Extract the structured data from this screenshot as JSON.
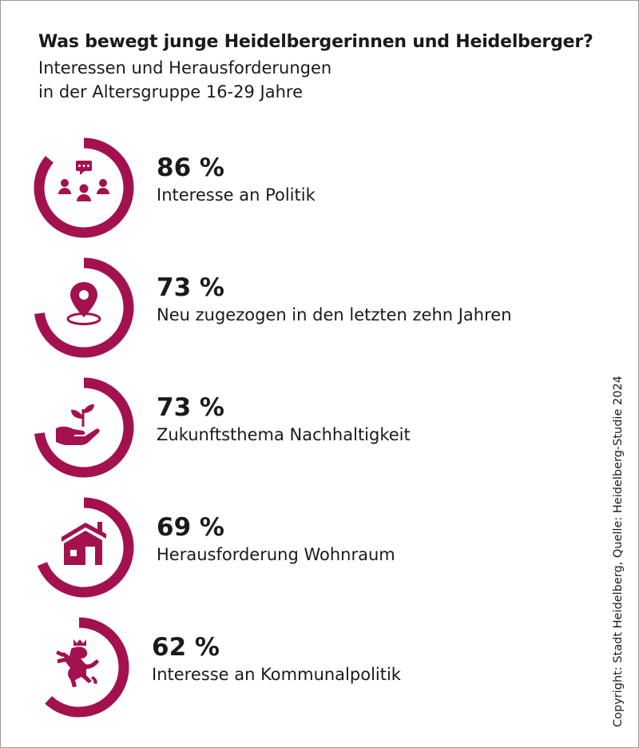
{
  "title": "Was bewegt junge Heidelbergerinnen und Heidelberger?",
  "subtitle_lines": [
    "Interessen und Herausforderungen",
    "in der Altersgruppe 16-29 Jahre"
  ],
  "copyright": "Copyright: Stadt Heidelberg, Quelle: Heidelberg-Studie 2024",
  "colors": {
    "accent": "#a3114f"
  },
  "chart_data": {
    "type": "radial-progress",
    "unit": "%",
    "max": 100,
    "items": [
      {
        "value": 86,
        "display": "86 %",
        "label": "Interesse an Politik",
        "icon": "people-discussion-icon"
      },
      {
        "value": 73,
        "display": "73 %",
        "label": "Neu zugezogen in den letzten zehn Jahren",
        "icon": "location-pin-icon"
      },
      {
        "value": 73,
        "display": "73 %",
        "label": "Zukunftsthema Nachhaltigkeit",
        "icon": "plant-in-hand-icon"
      },
      {
        "value": 69,
        "display": "69 %",
        "label": "Herausforderung Wohnraum",
        "icon": "house-icon"
      },
      {
        "value": 62,
        "display": "62 %",
        "label": "Interesse an Kommunalpolitik",
        "icon": "heraldic-lion-icon"
      }
    ]
  }
}
